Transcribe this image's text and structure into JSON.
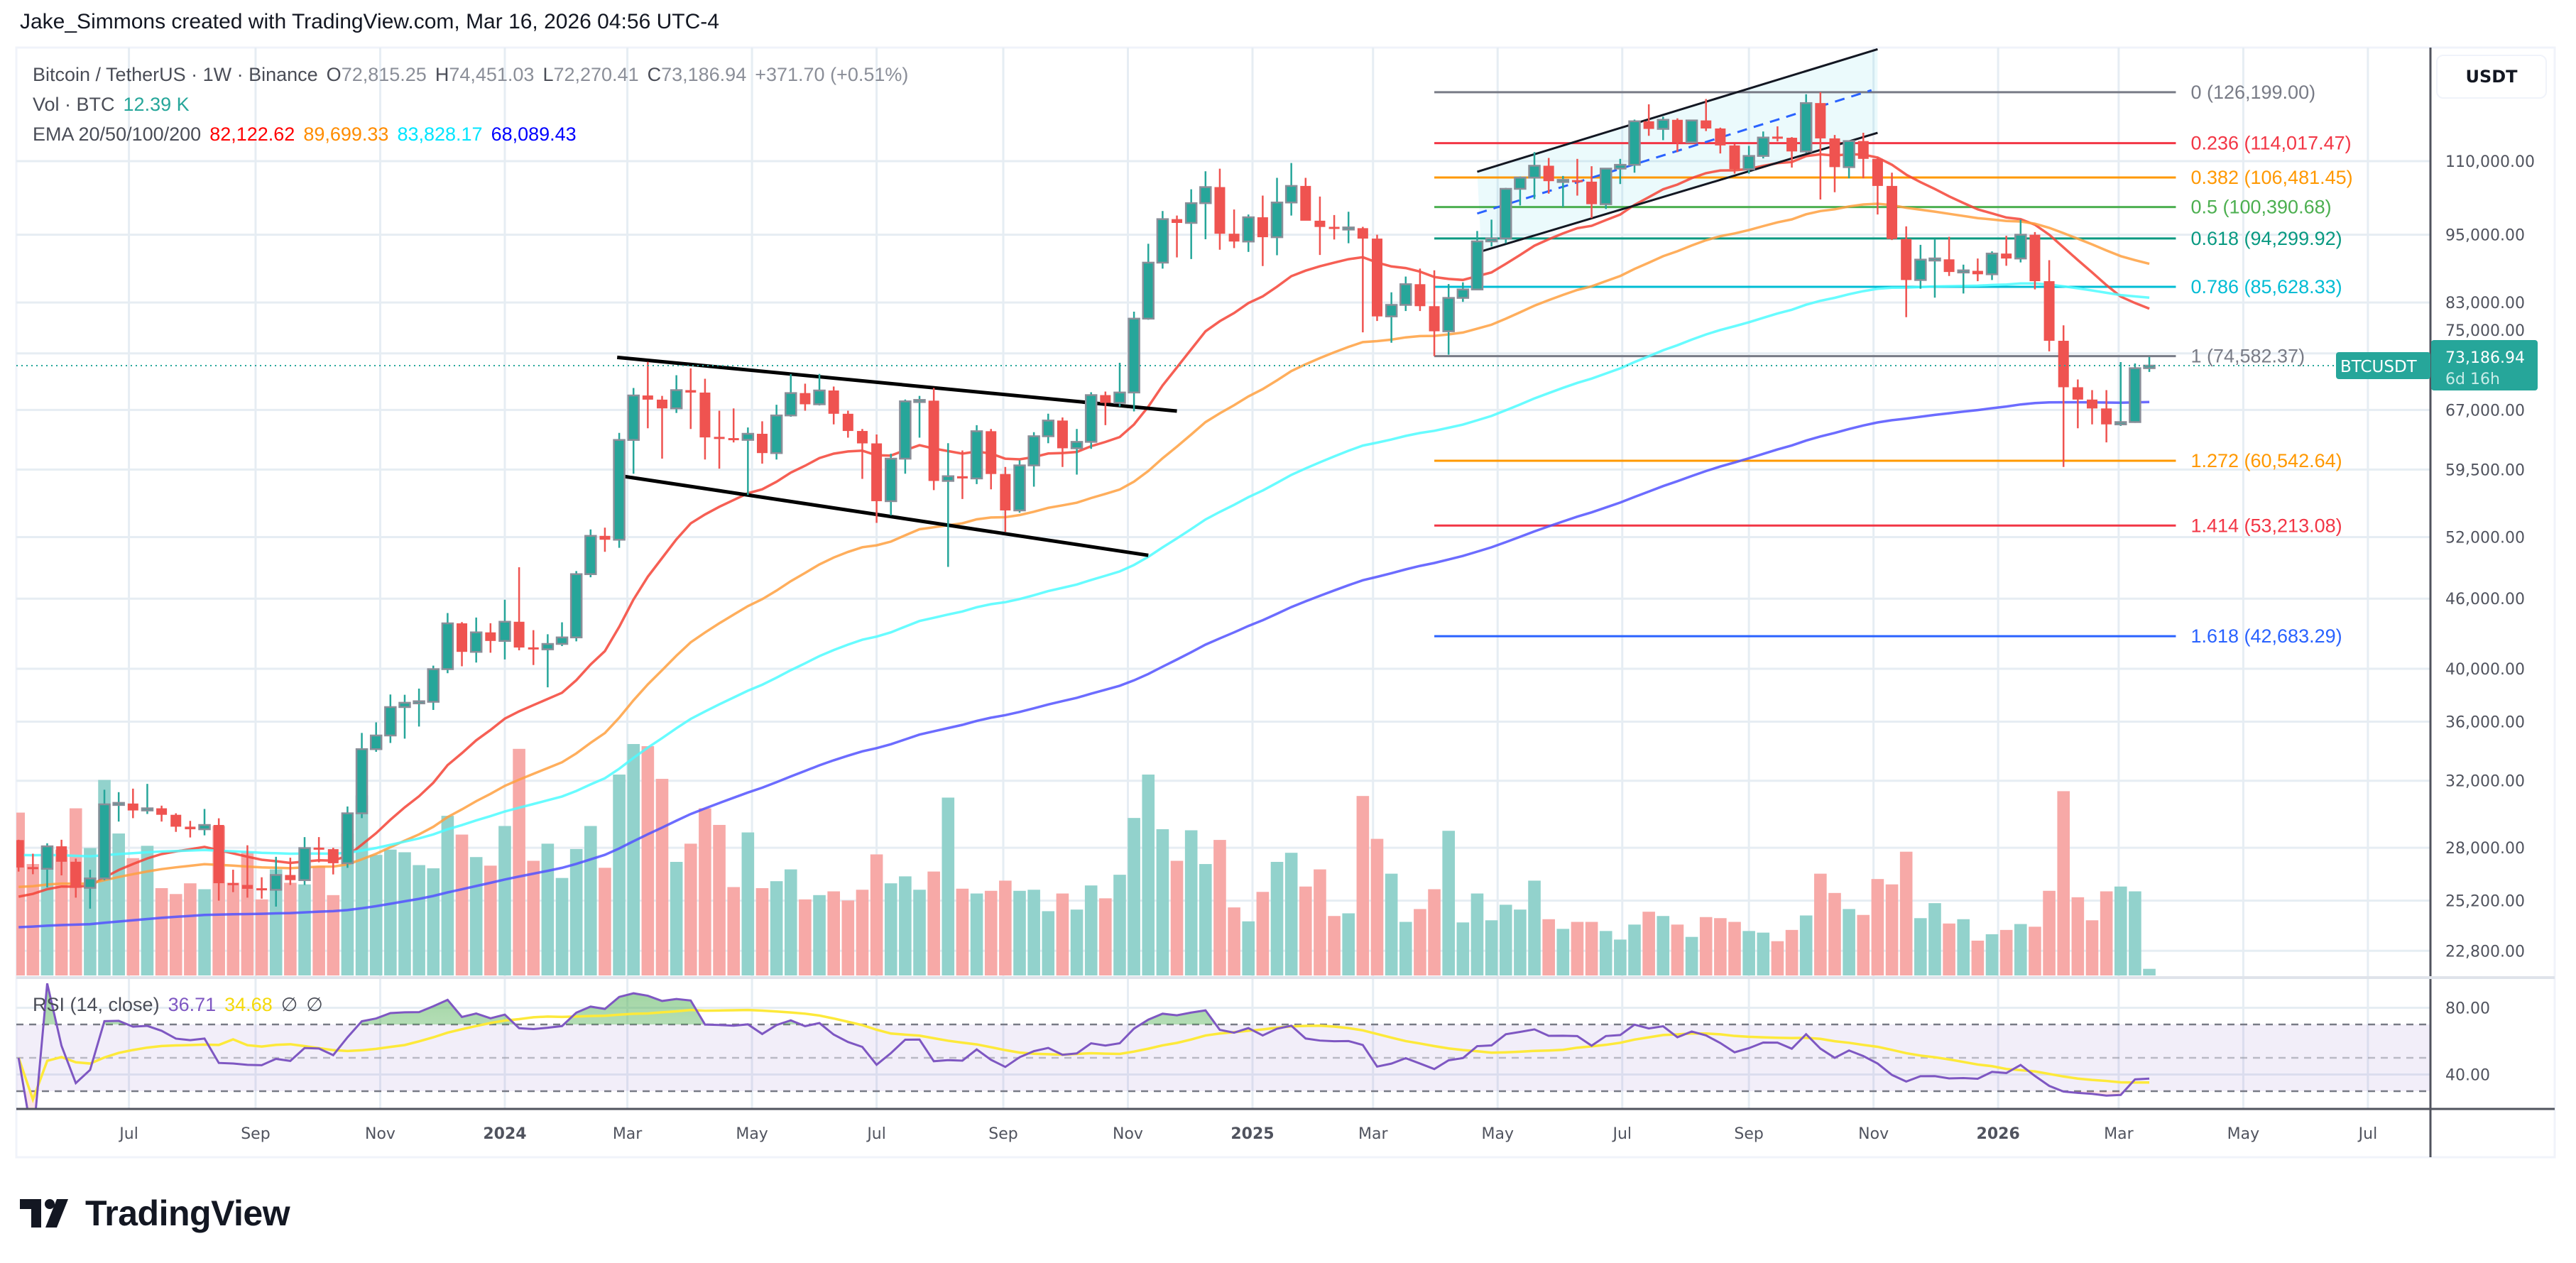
{
  "header": {
    "attribution": "Jake_Simmons created with TradingView.com, Mar 16, 2026 04:56 UTC-4"
  },
  "legend": {
    "symbol": "Bitcoin / TetherUS · 1W · Binance",
    "open_label": "O",
    "open": "72,815.25",
    "high_label": "H",
    "high": "74,451.03",
    "low_label": "L",
    "low": "72,270.41",
    "close_label": "C",
    "close": "73,186.94",
    "change": "+371.70 (+0.51%)",
    "volume_label": "Vol · BTC",
    "volume": "12.39 K",
    "ema_label": "EMA 20/50/100/200",
    "ema_values": [
      "82,122.62",
      "89,699.33",
      "83,828.17",
      "68,089.43"
    ]
  },
  "rsi_legend": {
    "label": "RSI (14, close)",
    "value": "36.71",
    "ma_value": "34.68",
    "extra1": "∅",
    "extra2": "∅"
  },
  "price_axis": {
    "currency": "USDT",
    "scale": "log",
    "ticks": [
      110000,
      95000,
      83000,
      75000,
      67000,
      59500,
      52000,
      46000,
      40000,
      36000,
      32000,
      28000,
      25200,
      22800
    ]
  },
  "current_price": {
    "symbol": "BTCUSDT",
    "price": "73,186.94",
    "countdown": "6d 16h",
    "value": 73186.94,
    "color": "#26a69a"
  },
  "rsi_axis": {
    "ticks": [
      80,
      40
    ],
    "upper_band": 70,
    "middle_band": 50,
    "lower_band": 30
  },
  "time_axis": {
    "ticks": [
      {
        "label": "Jul",
        "date": "2023-07-01",
        "year": false
      },
      {
        "label": "Sep",
        "date": "2023-09-01",
        "year": false
      },
      {
        "label": "Nov",
        "date": "2023-11-01",
        "year": false
      },
      {
        "label": "2024",
        "date": "2024-01-01",
        "year": true
      },
      {
        "label": "Mar",
        "date": "2024-03-01",
        "year": false
      },
      {
        "label": "May",
        "date": "2024-05-01",
        "year": false
      },
      {
        "label": "Jul",
        "date": "2024-07-01",
        "year": false
      },
      {
        "label": "Sep",
        "date": "2024-09-01",
        "year": false
      },
      {
        "label": "Nov",
        "date": "2024-11-01",
        "year": false
      },
      {
        "label": "2025",
        "date": "2025-01-01",
        "year": true
      },
      {
        "label": "Mar",
        "date": "2025-03-01",
        "year": false
      },
      {
        "label": "May",
        "date": "2025-05-01",
        "year": false
      },
      {
        "label": "Jul",
        "date": "2025-07-01",
        "year": false
      },
      {
        "label": "Sep",
        "date": "2025-09-01",
        "year": false
      },
      {
        "label": "Nov",
        "date": "2025-11-01",
        "year": false
      },
      {
        "label": "2026",
        "date": "2026-01-01",
        "year": true
      },
      {
        "label": "Mar",
        "date": "2026-03-01",
        "year": false
      },
      {
        "label": "May",
        "date": "2026-05-01",
        "year": false
      },
      {
        "label": "Jul",
        "date": "2026-07-01",
        "year": false
      }
    ]
  },
  "colors": {
    "up": "#26a69a",
    "down": "#ef5350",
    "up_volume": "#92d2cc",
    "down_volume": "#f7a9a7",
    "rsi": "#7e57c2",
    "rsi_ma": "#fde93a"
  },
  "fib": {
    "start_date": "2025-03-31",
    "end_date": "2026-03-29",
    "levels": [
      {
        "ratio": "0",
        "price": 126199.0,
        "text": "(126,199.00)",
        "color": "#787b86"
      },
      {
        "ratio": "0.236",
        "price": 114017.47,
        "text": "(114,017.47)",
        "color": "#f23645"
      },
      {
        "ratio": "0.382",
        "price": 106481.45,
        "text": "(106,481.45)",
        "color": "#ff9800"
      },
      {
        "ratio": "0.5",
        "price": 100390.68,
        "text": "(100,390.68)",
        "color": "#4caf50"
      },
      {
        "ratio": "0.618",
        "price": 94299.92,
        "text": "(94,299.92)",
        "color": "#089981"
      },
      {
        "ratio": "0.786",
        "price": 85628.33,
        "text": "(85,628.33)",
        "color": "#00bcd4"
      },
      {
        "ratio": "1",
        "price": 74582.37,
        "text": "(74,582.37)",
        "color": "#787b86"
      },
      {
        "ratio": "1.272",
        "price": 60542.64,
        "text": "(60,542.64)",
        "color": "#ff9800"
      },
      {
        "ratio": "1.414",
        "price": 53213.08,
        "text": "(53,213.08)",
        "color": "#f23645"
      },
      {
        "ratio": "1.618",
        "price": 42683.29,
        "text": "(42,683.29)",
        "color": "#2962ff"
      }
    ]
  },
  "drawings": {
    "trendlines": [
      {
        "name": "descending-upper",
        "from": {
          "date": "2024-02-25",
          "price": 74400
        },
        "to": {
          "date": "2024-11-25",
          "price": 66850
        },
        "color": "#000000",
        "dashed": false
      },
      {
        "name": "descending-lower",
        "from": {
          "date": "2024-02-28",
          "price": 58700
        },
        "to": {
          "date": "2024-11-11",
          "price": 50150
        },
        "color": "#000000",
        "dashed": false
      },
      {
        "name": "channel-upper",
        "from": {
          "date": "2025-04-21",
          "price": 107700
        },
        "to": {
          "date": "2025-11-03",
          "price": 137500
        },
        "color": "#131722",
        "dashed": false
      },
      {
        "name": "channel-lower",
        "from": {
          "date": "2025-04-23",
          "price": 91900
        },
        "to": {
          "date": "2025-11-03",
          "price": 116400
        },
        "color": "#131722",
        "dashed": false
      },
      {
        "name": "channel-middle",
        "from": {
          "date": "2025-04-21",
          "price": 99100
        },
        "to": {
          "date": "2025-10-31",
          "price": 126700
        },
        "color": "#2962ff",
        "dashed": true
      }
    ],
    "channel_fill": "#00bcd4"
  },
  "ema": [
    {
      "period": 20,
      "color": "#ff0000",
      "line_color": "#f44336",
      "start": 25400
    },
    {
      "period": 50,
      "color": "#ff8c00",
      "line_color": "#ffa040",
      "start": 25900
    },
    {
      "period": 100,
      "color": "#00e5ff",
      "line_color": "#4dfcff",
      "start": 27600
    },
    {
      "period": 200,
      "color": "#0000ff",
      "line_color": "#5252ff",
      "start": 23900
    }
  ],
  "candles": {
    "start_date": "2023-05-08",
    "interval": "1W",
    "ohlc": [
      [
        28430,
        28450,
        26700,
        26920
      ],
      [
        26920,
        27670,
        26560,
        26850
      ],
      [
        26850,
        28250,
        25870,
        28080
      ],
      [
        28080,
        28450,
        26500,
        27230
      ],
      [
        27230,
        27400,
        25350,
        25850
      ],
      [
        25850,
        26800,
        24800,
        26340
      ],
      [
        26340,
        31430,
        26250,
        30530
      ],
      [
        30530,
        31280,
        29500,
        30580
      ],
      [
        30580,
        31500,
        29700,
        30160
      ],
      [
        30160,
        31800,
        29950,
        30290
      ],
      [
        30290,
        30450,
        29500,
        29900
      ],
      [
        29900,
        29990,
        28900,
        29200
      ],
      [
        29200,
        29540,
        28580,
        29050
      ],
      [
        29050,
        30250,
        28700,
        29300
      ],
      [
        29300,
        29690,
        25200,
        26090
      ],
      [
        26090,
        26800,
        25630,
        26000
      ],
      [
        26000,
        28140,
        25350,
        25800
      ],
      [
        25800,
        26400,
        25300,
        25750
      ],
      [
        25750,
        27500,
        24900,
        26520
      ],
      [
        26520,
        27450,
        26000,
        26250
      ],
      [
        26250,
        28600,
        26000,
        27980
      ],
      [
        27980,
        28600,
        27200,
        27920
      ],
      [
        27920,
        28000,
        26550,
        27150
      ],
      [
        27150,
        30400,
        26900,
        29990
      ],
      [
        29990,
        35200,
        29700,
        34080
      ],
      [
        34080,
        35950,
        33900,
        35020
      ],
      [
        35020,
        38000,
        34500,
        37060
      ],
      [
        37060,
        37980,
        34800,
        37380
      ],
      [
        37380,
        38450,
        35650,
        37450
      ],
      [
        37450,
        40250,
        36850,
        39970
      ],
      [
        39970,
        44700,
        39650,
        43790
      ],
      [
        43790,
        43900,
        40200,
        41370
      ],
      [
        41370,
        44300,
        40500,
        43010
      ],
      [
        43010,
        43800,
        41300,
        42280
      ],
      [
        42280,
        45900,
        40750,
        43930
      ],
      [
        43930,
        48970,
        41500,
        41730
      ],
      [
        41730,
        43200,
        40300,
        41580
      ],
      [
        41580,
        42850,
        38550,
        42030
      ],
      [
        42030,
        43880,
        41850,
        42580
      ],
      [
        42580,
        48600,
        42250,
        48300
      ],
      [
        48300,
        52800,
        48000,
        52130
      ],
      [
        52130,
        52990,
        50500,
        51730
      ],
      [
        51730,
        64000,
        50900,
        63110
      ],
      [
        63110,
        70000,
        59000,
        68960
      ],
      [
        68960,
        73750,
        64600,
        68390
      ],
      [
        68390,
        68900,
        60800,
        67210
      ],
      [
        67210,
        71800,
        66600,
        69700
      ],
      [
        69700,
        72800,
        64500,
        69360
      ],
      [
        69360,
        71300,
        60700,
        63430
      ],
      [
        63430,
        66900,
        59600,
        63300
      ],
      [
        63300,
        67200,
        62800,
        63120
      ],
      [
        63120,
        64700,
        56550,
        63890
      ],
      [
        63890,
        65500,
        60200,
        61480
      ],
      [
        61480,
        67700,
        60700,
        66270
      ],
      [
        66270,
        71950,
        66100,
        69290
      ],
      [
        69290,
        70600,
        66900,
        67760
      ],
      [
        67760,
        71990,
        67600,
        69650
      ],
      [
        69650,
        70200,
        65100,
        66490
      ],
      [
        66490,
        66900,
        63400,
        64250
      ],
      [
        64250,
        64500,
        58400,
        62680
      ],
      [
        62680,
        63800,
        53500,
        55860
      ],
      [
        55860,
        61400,
        54300,
        60800
      ],
      [
        60800,
        68400,
        59000,
        68160
      ],
      [
        68160,
        68900,
        63400,
        68250
      ],
      [
        68250,
        70000,
        57100,
        58160
      ],
      [
        58160,
        62700,
        49000,
        58710
      ],
      [
        58710,
        61800,
        56100,
        58450
      ],
      [
        58450,
        65000,
        57800,
        64220
      ],
      [
        64220,
        64500,
        57200,
        58970
      ],
      [
        58970,
        59800,
        52550,
        54840
      ],
      [
        54840,
        60600,
        54600,
        59990
      ],
      [
        59990,
        64100,
        57500,
        63580
      ],
      [
        63580,
        66500,
        62700,
        65600
      ],
      [
        65600,
        66000,
        59800,
        62070
      ],
      [
        62070,
        64500,
        58900,
        62870
      ],
      [
        62870,
        69400,
        62000,
        69010
      ],
      [
        69010,
        69500,
        65000,
        67950
      ],
      [
        67950,
        73600,
        67450,
        69370
      ],
      [
        69370,
        81500,
        66800,
        80370
      ],
      [
        80370,
        93300,
        80200,
        89860
      ],
      [
        89860,
        99600,
        88800,
        98000
      ],
      [
        98000,
        98700,
        90800,
        97260
      ],
      [
        97260,
        104000,
        90500,
        101170
      ],
      [
        101170,
        107800,
        94150,
        104460
      ],
      [
        104460,
        108350,
        92200,
        95190
      ],
      [
        95190,
        99900,
        92500,
        93720
      ],
      [
        93720,
        98900,
        91800,
        98360
      ],
      [
        98360,
        102700,
        89250,
        94530
      ],
      [
        94530,
        106400,
        91200,
        101300
      ],
      [
        101300,
        109600,
        98700,
        104700
      ],
      [
        104700,
        106400,
        97800,
        97690
      ],
      [
        97690,
        102500,
        91250,
        96480
      ],
      [
        96480,
        98800,
        94100,
        96120
      ],
      [
        96120,
        99450,
        93400,
        96250
      ],
      [
        96250,
        96500,
        78200,
        94270
      ],
      [
        94270,
        95000,
        80000,
        80730
      ],
      [
        80730,
        84700,
        76600,
        82600
      ],
      [
        82600,
        87400,
        81600,
        86080
      ],
      [
        86080,
        88800,
        81600,
        82390
      ],
      [
        82390,
        88500,
        74582,
        78370
      ],
      [
        78370,
        86100,
        74800,
        83760
      ],
      [
        83760,
        86400,
        83100,
        85180
      ],
      [
        85180,
        95700,
        85100,
        93750
      ],
      [
        93750,
        97900,
        92800,
        94300
      ],
      [
        94300,
        104300,
        93400,
        104100
      ],
      [
        104100,
        106700,
        100700,
        106450
      ],
      [
        106450,
        112000,
        102000,
        109000
      ],
      [
        109000,
        110700,
        103100,
        105700
      ],
      [
        105700,
        106800,
        100400,
        105800
      ],
      [
        105800,
        110500,
        102700,
        105600
      ],
      [
        105600,
        108900,
        98200,
        100960
      ],
      [
        100960,
        108500,
        100000,
        108380
      ],
      [
        108380,
        110500,
        105100,
        109200
      ],
      [
        109200,
        119500,
        107500,
        119100
      ],
      [
        119100,
        123200,
        115700,
        117300
      ],
      [
        117300,
        120200,
        114700,
        119450
      ],
      [
        119450,
        119800,
        112000,
        114200
      ],
      [
        114200,
        119300,
        114100,
        119300
      ],
      [
        119300,
        124500,
        116800,
        117400
      ],
      [
        117400,
        117600,
        111700,
        113500
      ],
      [
        113500,
        113800,
        107300,
        108250
      ],
      [
        108250,
        113400,
        107300,
        111150
      ],
      [
        111150,
        116700,
        110600,
        115300
      ],
      [
        115300,
        117900,
        114400,
        115250
      ],
      [
        115250,
        115400,
        108600,
        112150
      ],
      [
        112150,
        125700,
        111800,
        123500
      ],
      [
        123500,
        126199,
        101900,
        115100
      ],
      [
        115100,
        115900,
        103400,
        108700
      ],
      [
        108700,
        114000,
        106300,
        114500
      ],
      [
        114500,
        116400,
        106300,
        110500
      ],
      [
        110500,
        110800,
        98900,
        104700
      ],
      [
        104700,
        107500,
        94000,
        94200
      ],
      [
        94200,
        96600,
        80600,
        86800
      ],
      [
        86800,
        93100,
        85300,
        90400
      ],
      [
        90400,
        94200,
        83800,
        90450
      ],
      [
        90450,
        94600,
        87500,
        88200
      ],
      [
        88200,
        89500,
        84500,
        88400
      ],
      [
        88400,
        90600,
        86600,
        87800
      ],
      [
        87800,
        91900,
        86800,
        91500
      ],
      [
        91500,
        94800,
        89300,
        90600
      ],
      [
        90600,
        97900,
        89900,
        95000
      ],
      [
        95000,
        95500,
        85200,
        86600
      ],
      [
        86600,
        90300,
        75300,
        76900
      ],
      [
        76900,
        79300,
        59800,
        70100
      ],
      [
        70100,
        71200,
        64600,
        68400
      ],
      [
        68400,
        69700,
        65100,
        67200
      ],
      [
        67200,
        69700,
        62800,
        65100
      ],
      [
        65100,
        73700,
        64900,
        65400
      ],
      [
        65400,
        73500,
        65300,
        72815.25
      ],
      [
        72815.25,
        74451.03,
        72270.41,
        73186.94
      ]
    ],
    "volume_k": [
      304,
      208,
      235,
      235,
      312,
      238,
      365,
      265,
      219,
      242,
      163,
      152,
      172,
      161,
      279,
      173,
      231,
      142,
      198,
      173,
      170,
      204,
      150,
      265,
      336,
      225,
      235,
      230,
      206,
      200,
      298,
      263,
      221,
      205,
      279,
      423,
      214,
      246,
      182,
      236,
      279,
      201,
      375,
      432,
      428,
      367,
      212,
      246,
      312,
      281,
      165,
      267,
      163,
      176,
      198,
      142,
      150,
      157,
      140,
      160,
      226,
      172,
      185,
      160,
      194,
      332,
      162,
      153,
      158,
      177,
      158,
      160,
      120,
      153,
      123,
      168,
      144,
      188,
      294,
      375,
      273,
      214,
      271,
      208,
      253,
      127,
      101,
      156,
      212,
      229,
      166,
      198,
      111,
      116,
      335,
      255,
      190,
      100,
      124,
      161,
      270,
      99,
      153,
      103,
      132,
      123,
      177,
      105,
      87,
      100,
      100,
      83,
      67,
      95,
      119,
      111,
      95,
      72,
      109,
      107,
      100,
      83,
      80,
      64,
      85,
      112,
      190,
      154,
      124,
      113,
      180,
      170,
      231,
      107,
      135,
      97,
      105,
      65,
      77,
      85,
      96,
      91,
      158,
      344,
      146,
      103,
      157,
      166,
      157,
      12.39
    ]
  }
}
